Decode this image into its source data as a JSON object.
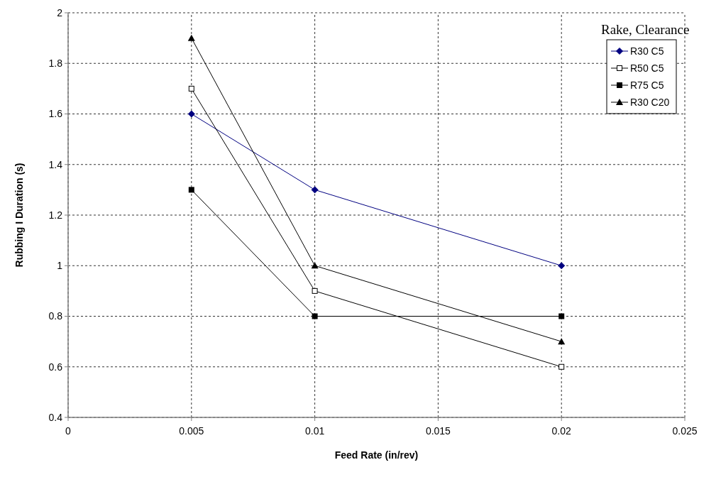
{
  "chart_data": {
    "type": "line",
    "xlabel": "Feed Rate (in/rev)",
    "ylabel": "Rubbing I Duration (s)",
    "legend_title": "Rake, Clearance",
    "legend": "top right",
    "grid": true,
    "x": [
      0.005,
      0.01,
      0.02
    ],
    "xlim": [
      0,
      0.025
    ],
    "xticks": [
      0,
      0.005,
      0.01,
      0.015,
      0.02,
      0.025
    ],
    "ylim": [
      0.4,
      2
    ],
    "yticks": [
      {
        "value": 0.4,
        "label": "0.4"
      },
      {
        "value": 0.6,
        "label": "0.6"
      },
      {
        "value": 0.8,
        "label": "0.8"
      },
      {
        "value": 1,
        "label": "1"
      },
      {
        "value": 1.2,
        "label": "1.2"
      },
      {
        "value": 1.4,
        "label": "1.4"
      },
      {
        "value": 1.6,
        "label": "1.6"
      },
      {
        "value": 1.8,
        "label": "1.8"
      },
      {
        "value": 2,
        "label": "2"
      }
    ],
    "series": [
      {
        "name": "R30 C5",
        "color": "#000080",
        "marker": "diamond",
        "values": [
          1.6,
          1.3,
          1.0
        ]
      },
      {
        "name": "R50 C5",
        "color": "#000000",
        "marker": "square-open",
        "values": [
          1.7,
          0.9,
          0.6
        ]
      },
      {
        "name": "R75 C5",
        "color": "#000000",
        "marker": "square",
        "values": [
          1.3,
          0.8,
          0.8
        ]
      },
      {
        "name": "R30 C20",
        "color": "#000000",
        "marker": "triangle",
        "values": [
          1.9,
          1.0,
          0.7
        ]
      }
    ]
  }
}
